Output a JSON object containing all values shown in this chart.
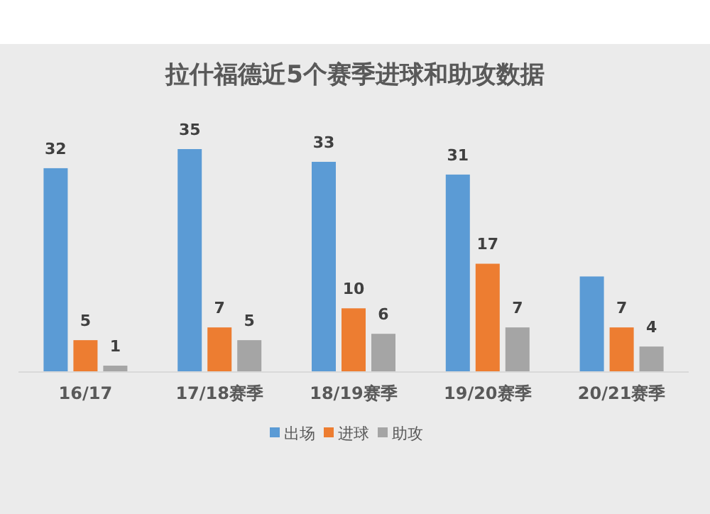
{
  "chart_data": {
    "type": "bar",
    "title": "拉什福德近5个赛季进球和助攻数据",
    "categories": [
      "16/17",
      "17/18赛季",
      "18/19赛季",
      "19/20赛季",
      "20/21赛季"
    ],
    "series": [
      {
        "name": "出场",
        "color": "#5b9bd5",
        "values": [
          32,
          35,
          33,
          31,
          15
        ],
        "value_labels": [
          "32",
          "35",
          "33",
          "31",
          null
        ]
      },
      {
        "name": "进球",
        "color": "#ed7d31",
        "values": [
          5,
          7,
          10,
          17,
          7
        ],
        "value_labels": [
          "5",
          "7",
          "10",
          "17",
          "7"
        ]
      },
      {
        "name": "助攻",
        "color": "#a5a5a5",
        "values": [
          1,
          5,
          6,
          7,
          4
        ],
        "value_labels": [
          "1",
          "5",
          "6",
          "7",
          "4"
        ]
      }
    ],
    "legend": "bottom"
  }
}
